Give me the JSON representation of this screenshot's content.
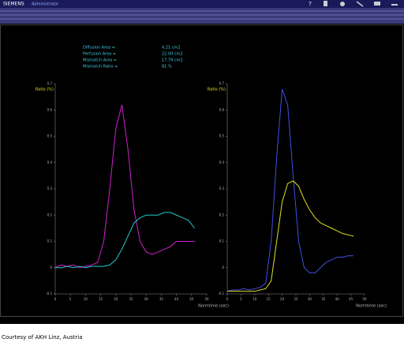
{
  "header": {
    "brand": "SIEMENS",
    "user": "Administrator",
    "help": "?"
  },
  "stats": {
    "rows": [
      {
        "label": "Diffusion Area    =",
        "value": "4.21 cm2"
      },
      {
        "label": "Perfusion Area    =",
        "value": "22.00 cm2"
      },
      {
        "label": "Mismatch Area    =",
        "value": "17.79 cm2"
      },
      {
        "label": "Mismatch Ratio    =",
        "value": "81 %"
      }
    ]
  },
  "caption": "Courtesy of AKH Linz, Austria",
  "chart_data": [
    {
      "type": "line",
      "y_label": "Ratio (%)",
      "x_label": "Normtime (sec)",
      "x": [
        0,
        2,
        4,
        6,
        8,
        10,
        12,
        14,
        16,
        18,
        20,
        22,
        24,
        26,
        28,
        30,
        32,
        34,
        36,
        38,
        40,
        42,
        44,
        46
      ],
      "series": [
        {
          "color": "#d020d0",
          "values": [
            0,
            0.01,
            0.005,
            0.01,
            0,
            0.005,
            0.01,
            0.02,
            0.1,
            0.3,
            0.53,
            0.62,
            0.45,
            0.22,
            0.1,
            0.06,
            0.05,
            0.06,
            0.07,
            0.08,
            0.1,
            0.1,
            0.1,
            0.1
          ]
        },
        {
          "color": "#20c8c8",
          "values": [
            0,
            0,
            0.005,
            0,
            0.005,
            0,
            0.005,
            0.005,
            0.005,
            0.01,
            0.03,
            0.07,
            0.12,
            0.17,
            0.19,
            0.2,
            0.2,
            0.2,
            0.21,
            0.21,
            0.2,
            0.19,
            0.18,
            0.15
          ]
        }
      ],
      "xlim": [
        0,
        50
      ],
      "xticks": [
        0,
        5,
        10,
        15,
        20,
        25,
        30,
        35,
        40,
        45,
        50
      ],
      "ylim": [
        -0.1,
        0.7
      ],
      "yticks": [
        -0.1,
        0,
        0.1,
        0.2,
        0.3,
        0.4,
        0.5,
        0.6,
        0.7
      ]
    },
    {
      "type": "line",
      "y_label": "Ratio (%)",
      "x_label": "Normtime (sec)",
      "x": [
        0,
        2,
        4,
        6,
        8,
        10,
        12,
        14,
        16,
        18,
        20,
        22,
        24,
        26,
        28,
        30,
        32,
        34,
        36,
        38,
        40,
        42,
        44,
        46
      ],
      "series": [
        {
          "color": "#4050e0",
          "values": [
            -0.09,
            -0.085,
            -0.085,
            -0.08,
            -0.085,
            -0.08,
            -0.075,
            -0.06,
            0.1,
            0.42,
            0.68,
            0.62,
            0.35,
            0.1,
            0,
            -0.02,
            -0.02,
            0,
            0.02,
            0.03,
            0.04,
            0.04,
            0.045,
            0.045
          ]
        },
        {
          "color": "#e0e020",
          "values": [
            -0.09,
            -0.09,
            -0.09,
            -0.09,
            -0.09,
            -0.09,
            -0.085,
            -0.08,
            -0.05,
            0.1,
            0.25,
            0.32,
            0.33,
            0.31,
            0.26,
            0.22,
            0.19,
            0.17,
            0.16,
            0.15,
            0.14,
            0.13,
            0.125,
            0.12
          ]
        }
      ],
      "xlim": [
        0,
        50
      ],
      "xticks": [
        0,
        5,
        10,
        15,
        20,
        25,
        30,
        35,
        40,
        45,
        50
      ],
      "ylim": [
        -0.1,
        0.7
      ],
      "yticks": [
        -0.1,
        0,
        0.1,
        0.2,
        0.3,
        0.4,
        0.5,
        0.6,
        0.7
      ]
    }
  ]
}
